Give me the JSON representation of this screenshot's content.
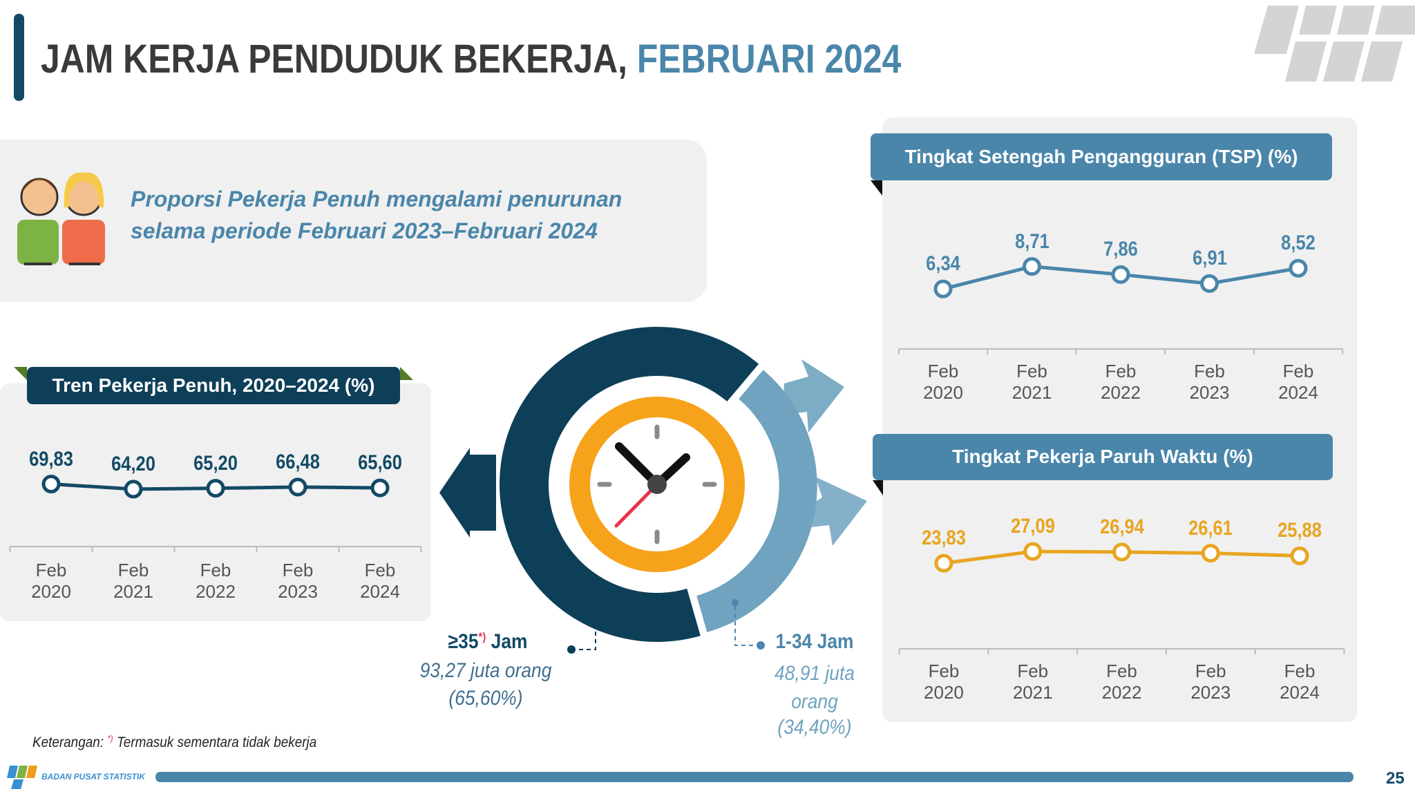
{
  "header": {
    "title_main": "JAM KERJA PENDUDUK BEKERJA,",
    "title_highlight": "FEBRUARI 2024"
  },
  "highlight": {
    "lines": [
      "Proporsi Pekerja Penuh mengalami penurunan",
      "selama periode Februari 2023–Februari 2024"
    ]
  },
  "chart_data": [
    {
      "type": "line",
      "title": "Tren Pekerja Penuh, 2020–2024 (%)",
      "categories": [
        "Feb 2020",
        "Feb 2021",
        "Feb 2022",
        "Feb 2023",
        "Feb 2024"
      ],
      "series": [
        {
          "color": "#134a66",
          "values": [
            69.83,
            64.2,
            65.2,
            66.48,
            65.6
          ],
          "value_labels": [
            "69,83",
            "64,20",
            "65,20",
            "66,48",
            "65,60"
          ]
        }
      ],
      "ylim": [
        0,
        100
      ]
    },
    {
      "type": "line",
      "title": "Tingkat Setengah Pengangguran (TSP) (%)",
      "categories": [
        "Feb 2020",
        "Feb 2021",
        "Feb 2022",
        "Feb 2023",
        "Feb 2024"
      ],
      "series": [
        {
          "color": "#4a86aa",
          "values": [
            6.34,
            8.71,
            7.86,
            6.91,
            8.52
          ],
          "value_labels": [
            "6,34",
            "8,71",
            "7,86",
            "6,91",
            "8,52"
          ]
        }
      ],
      "ylim": [
        0,
        10
      ]
    },
    {
      "type": "line",
      "title": "Tingkat Pekerja Paruh Waktu (%)",
      "categories": [
        "Feb 2020",
        "Feb 2021",
        "Feb 2022",
        "Feb 2023",
        "Feb 2024"
      ],
      "series": [
        {
          "color": "#e8a520",
          "values": [
            23.83,
            27.09,
            26.94,
            26.61,
            25.88
          ],
          "value_labels": [
            "23,83",
            "27,09",
            "26,94",
            "26,61",
            "25,88"
          ]
        }
      ],
      "ylim": [
        0,
        30
      ]
    },
    {
      "type": "donut",
      "categories": [
        "≥35",
        "1-34"
      ],
      "category_unit": "Jam",
      "counts": [
        "93,27 juta orang",
        "48,91 juta orang"
      ],
      "values": [
        65.6,
        34.4
      ],
      "value_labels": [
        "(65,60%)",
        "(34,40%)"
      ],
      "colors": [
        "#0e3f59",
        "#6fa3bf"
      ]
    }
  ],
  "footnote": {
    "label": "Keterangan:",
    "marker": "*)",
    "text": "Termasuk sementara tidak bekerja"
  },
  "footer": {
    "organization": "BADAN PUSAT STATISTIK",
    "page": "25"
  }
}
